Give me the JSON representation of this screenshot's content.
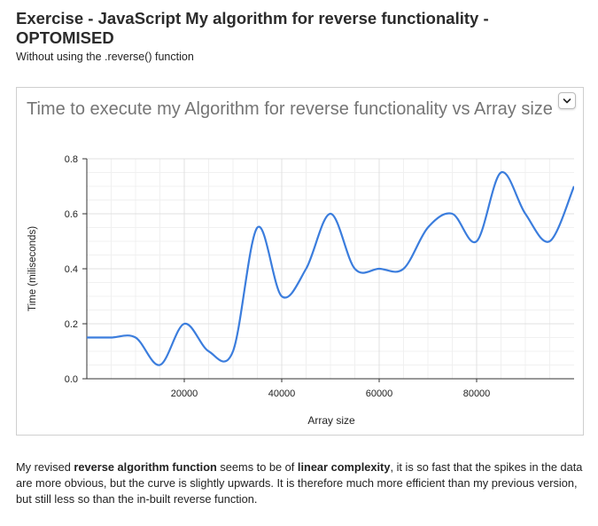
{
  "header": {
    "title": "Exercise - JavaScript My algorithm for reverse functionality - OPTOMISED",
    "subtitle": "Without using the .reverse() function"
  },
  "chart_data": {
    "type": "line",
    "title": "Time to execute my Algorithm for reverse functionality vs Array size",
    "xlabel": "Array size",
    "ylabel": "Time (miliseconds)",
    "xlim": [
      0,
      100000
    ],
    "ylim": [
      0,
      0.8
    ],
    "xticks": [
      20000,
      40000,
      60000,
      80000
    ],
    "yticks": [
      0.0,
      0.2,
      0.4,
      0.6,
      0.8
    ],
    "ytick_labels": [
      "0.0",
      "0.2",
      "0.4",
      "0.6",
      "0.8"
    ],
    "xtick_labels": [
      "20000",
      "40000",
      "60000",
      "80000"
    ],
    "grid": true,
    "line_color": "#3b7ddd",
    "series": [
      {
        "x": [
          0,
          5000,
          10000,
          15000,
          20000,
          25000,
          30000,
          35000,
          40000,
          45000,
          50000,
          55000,
          60000,
          65000,
          70000,
          75000,
          80000,
          85000,
          90000,
          95000,
          100000
        ],
        "y": [
          0.15,
          0.15,
          0.15,
          0.05,
          0.2,
          0.1,
          0.1,
          0.55,
          0.3,
          0.4,
          0.6,
          0.4,
          0.4,
          0.4,
          0.55,
          0.6,
          0.5,
          0.75,
          0.6,
          0.5,
          0.7
        ]
      }
    ]
  },
  "description": {
    "part1": "My revised ",
    "bold1": "reverse algorithm function",
    "part2": " seems to be of ",
    "bold2": "linear complexity",
    "part3": ", it is so fast that the spikes in the data are more obvious, but the curve is slightly upwards. It is therefore much more efficient than my previous version, but still less so than the in-built reverse function."
  },
  "colors": {
    "line": "#3b7ddd",
    "grid": "#e0e0e0",
    "axis": "#333333"
  }
}
